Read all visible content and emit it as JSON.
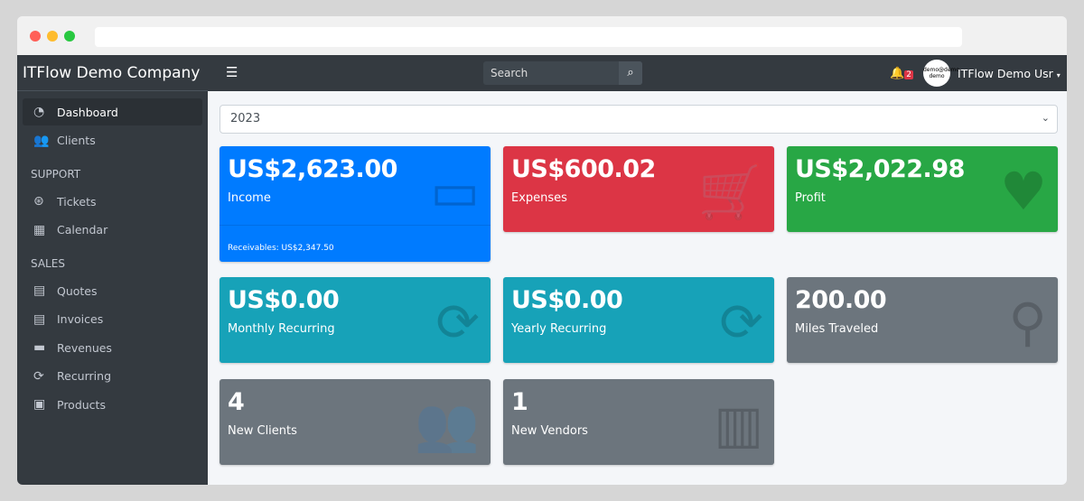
{
  "sidebar": {
    "brand": "ITFlow Demo Company",
    "items": [
      {
        "label": "Dashboard",
        "icon": "tachometer-icon"
      },
      {
        "label": "Clients",
        "icon": "users-icon"
      }
    ],
    "support_header": "SUPPORT",
    "support": [
      {
        "label": "Tickets",
        "icon": "life-ring-icon"
      },
      {
        "label": "Calendar",
        "icon": "calendar-icon"
      }
    ],
    "sales_header": "SALES",
    "sales": [
      {
        "label": "Quotes",
        "icon": "file-icon"
      },
      {
        "label": "Invoices",
        "icon": "invoice-icon"
      },
      {
        "label": "Revenues",
        "icon": "credit-card-icon"
      },
      {
        "label": "Recurring",
        "icon": "sync-icon"
      },
      {
        "label": "Products",
        "icon": "box-icon"
      }
    ]
  },
  "topbar": {
    "search_placeholder": "Search",
    "notifications": "2",
    "avatar_text": "demo@demo demo",
    "user": "ITFlow Demo Usr"
  },
  "year_select": "2023",
  "cards": [
    {
      "value": "US$2,623.00",
      "label": "Income",
      "footer": "Receivables: US$2,347.50",
      "color": "#007bff"
    },
    {
      "value": "US$600.02",
      "label": "Expenses",
      "color": "#dc3545"
    },
    {
      "value": "US$2,022.98",
      "label": "Profit",
      "color": "#28a745"
    },
    {
      "value": "US$0.00",
      "label": "Monthly Recurring",
      "color": "#17a2b8"
    },
    {
      "value": "US$0.00",
      "label": "Yearly Recurring",
      "color": "#17a2b8"
    },
    {
      "value": "200.00",
      "label": "Miles Traveled",
      "color": "#6c757d"
    },
    {
      "value": "4",
      "label": "New Clients",
      "color": "#6c757d"
    },
    {
      "value": "1",
      "label": "New Vendors",
      "color": "#6c757d"
    }
  ]
}
